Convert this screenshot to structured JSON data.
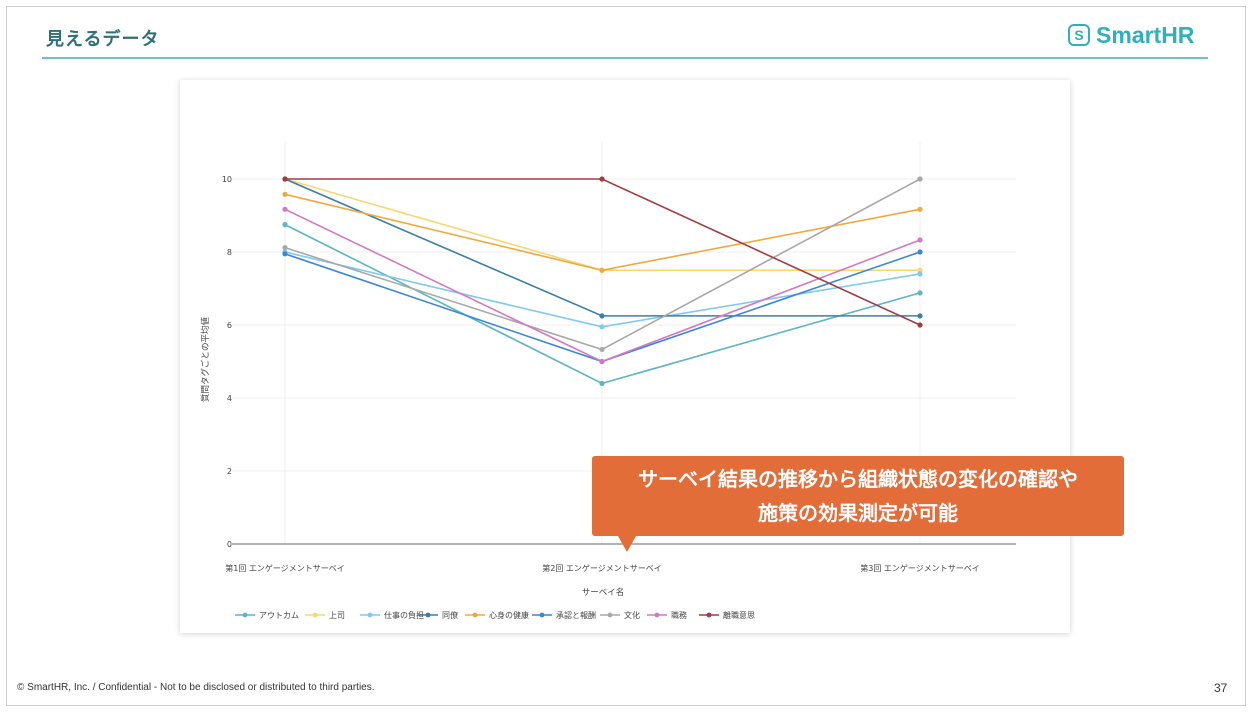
{
  "header": {
    "title": "見えるデータ",
    "logo_mark": "S",
    "logo_text": "SmartHR"
  },
  "callout": {
    "line1": "サーベイ結果の推移から組織状態の変化の確認や",
    "line2": "施策の効果測定が可能"
  },
  "footer": {
    "text": "© SmartHR, Inc. / Confidential - Not to be disclosed or distributed to third parties.",
    "page_number": "37"
  },
  "chart_data": {
    "type": "line",
    "xlabel": "サーベイ名",
    "ylabel": "質問タグごとの平均値",
    "ylim": [
      0,
      10
    ],
    "yticks": [
      0,
      2,
      4,
      6,
      8,
      10
    ],
    "grid": true,
    "legend_position": "bottom-left",
    "categories": [
      "第1回 エンゲージメントサーベイ",
      "第2回 エンゲージメントサーベイ",
      "第3回 エンゲージメントサーベイ"
    ],
    "series": [
      {
        "name": "アウトカム",
        "color": "#5bb6c1",
        "values": [
          8.75,
          4.4,
          6.88
        ]
      },
      {
        "name": "上司",
        "color": "#f7d774",
        "values": [
          10,
          7.5,
          7.5
        ]
      },
      {
        "name": "仕事の負担",
        "color": "#7ecbea",
        "values": [
          8.0,
          5.95,
          7.4
        ]
      },
      {
        "name": "同僚",
        "color": "#3c7ea6",
        "values": [
          10,
          6.25,
          6.25
        ]
      },
      {
        "name": "心身の健康",
        "color": "#f2a93b",
        "values": [
          9.58,
          7.5,
          9.17
        ]
      },
      {
        "name": "承認と報酬",
        "color": "#3a86d8",
        "values": [
          7.95,
          5.0,
          8.0
        ]
      },
      {
        "name": "文化",
        "color": "#a8a8a8",
        "values": [
          8.12,
          5.33,
          10
        ]
      },
      {
        "name": "職務",
        "color": "#d179c4",
        "values": [
          9.17,
          5.0,
          8.33
        ]
      },
      {
        "name": "離職意思",
        "color": "#a23b43",
        "values": [
          10,
          10,
          6.0
        ]
      }
    ]
  }
}
